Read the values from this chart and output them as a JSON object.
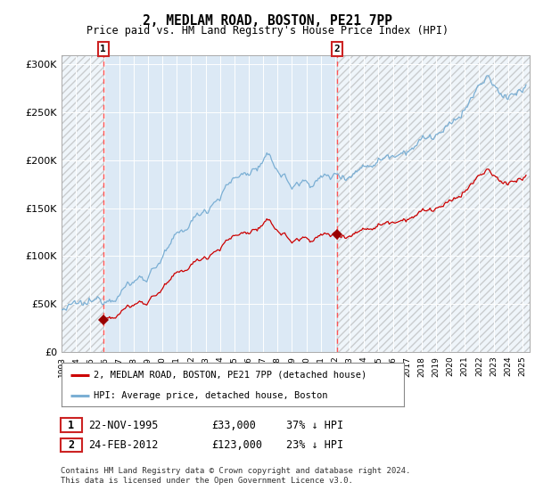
{
  "title": "2, MEDLAM ROAD, BOSTON, PE21 7PP",
  "subtitle": "Price paid vs. HM Land Registry's House Price Index (HPI)",
  "hpi_color": "#7bafd4",
  "price_color": "#cc0000",
  "marker_color": "#990000",
  "background_color": "#dce9f5",
  "vline_color": "#ff5555",
  "sale1_date_num": 1995.896,
  "sale1_price": 33000,
  "sale1_label": "22-NOV-1995",
  "sale1_pct": "37% ↓ HPI",
  "sale2_date_num": 2012.143,
  "sale2_price": 123000,
  "sale2_label": "24-FEB-2012",
  "sale2_pct": "23% ↓ HPI",
  "ylim": [
    0,
    310000
  ],
  "xlim_start": 1993.0,
  "xlim_end": 2025.5,
  "ylabel_ticks": [
    0,
    50000,
    100000,
    150000,
    200000,
    250000,
    300000
  ],
  "ylabel_labels": [
    "£0",
    "£50K",
    "£100K",
    "£150K",
    "£200K",
    "£250K",
    "£300K"
  ],
  "legend_line1": "2, MEDLAM ROAD, BOSTON, PE21 7PP (detached house)",
  "legend_line2": "HPI: Average price, detached house, Boston",
  "footnote": "Contains HM Land Registry data © Crown copyright and database right 2024.\nThis data is licensed under the Open Government Licence v3.0.",
  "xticks": [
    1993,
    1994,
    1995,
    1996,
    1997,
    1998,
    1999,
    2000,
    2001,
    2002,
    2003,
    2004,
    2005,
    2006,
    2007,
    2008,
    2009,
    2010,
    2011,
    2012,
    2013,
    2014,
    2015,
    2016,
    2017,
    2018,
    2019,
    2020,
    2021,
    2022,
    2023,
    2024,
    2025
  ]
}
